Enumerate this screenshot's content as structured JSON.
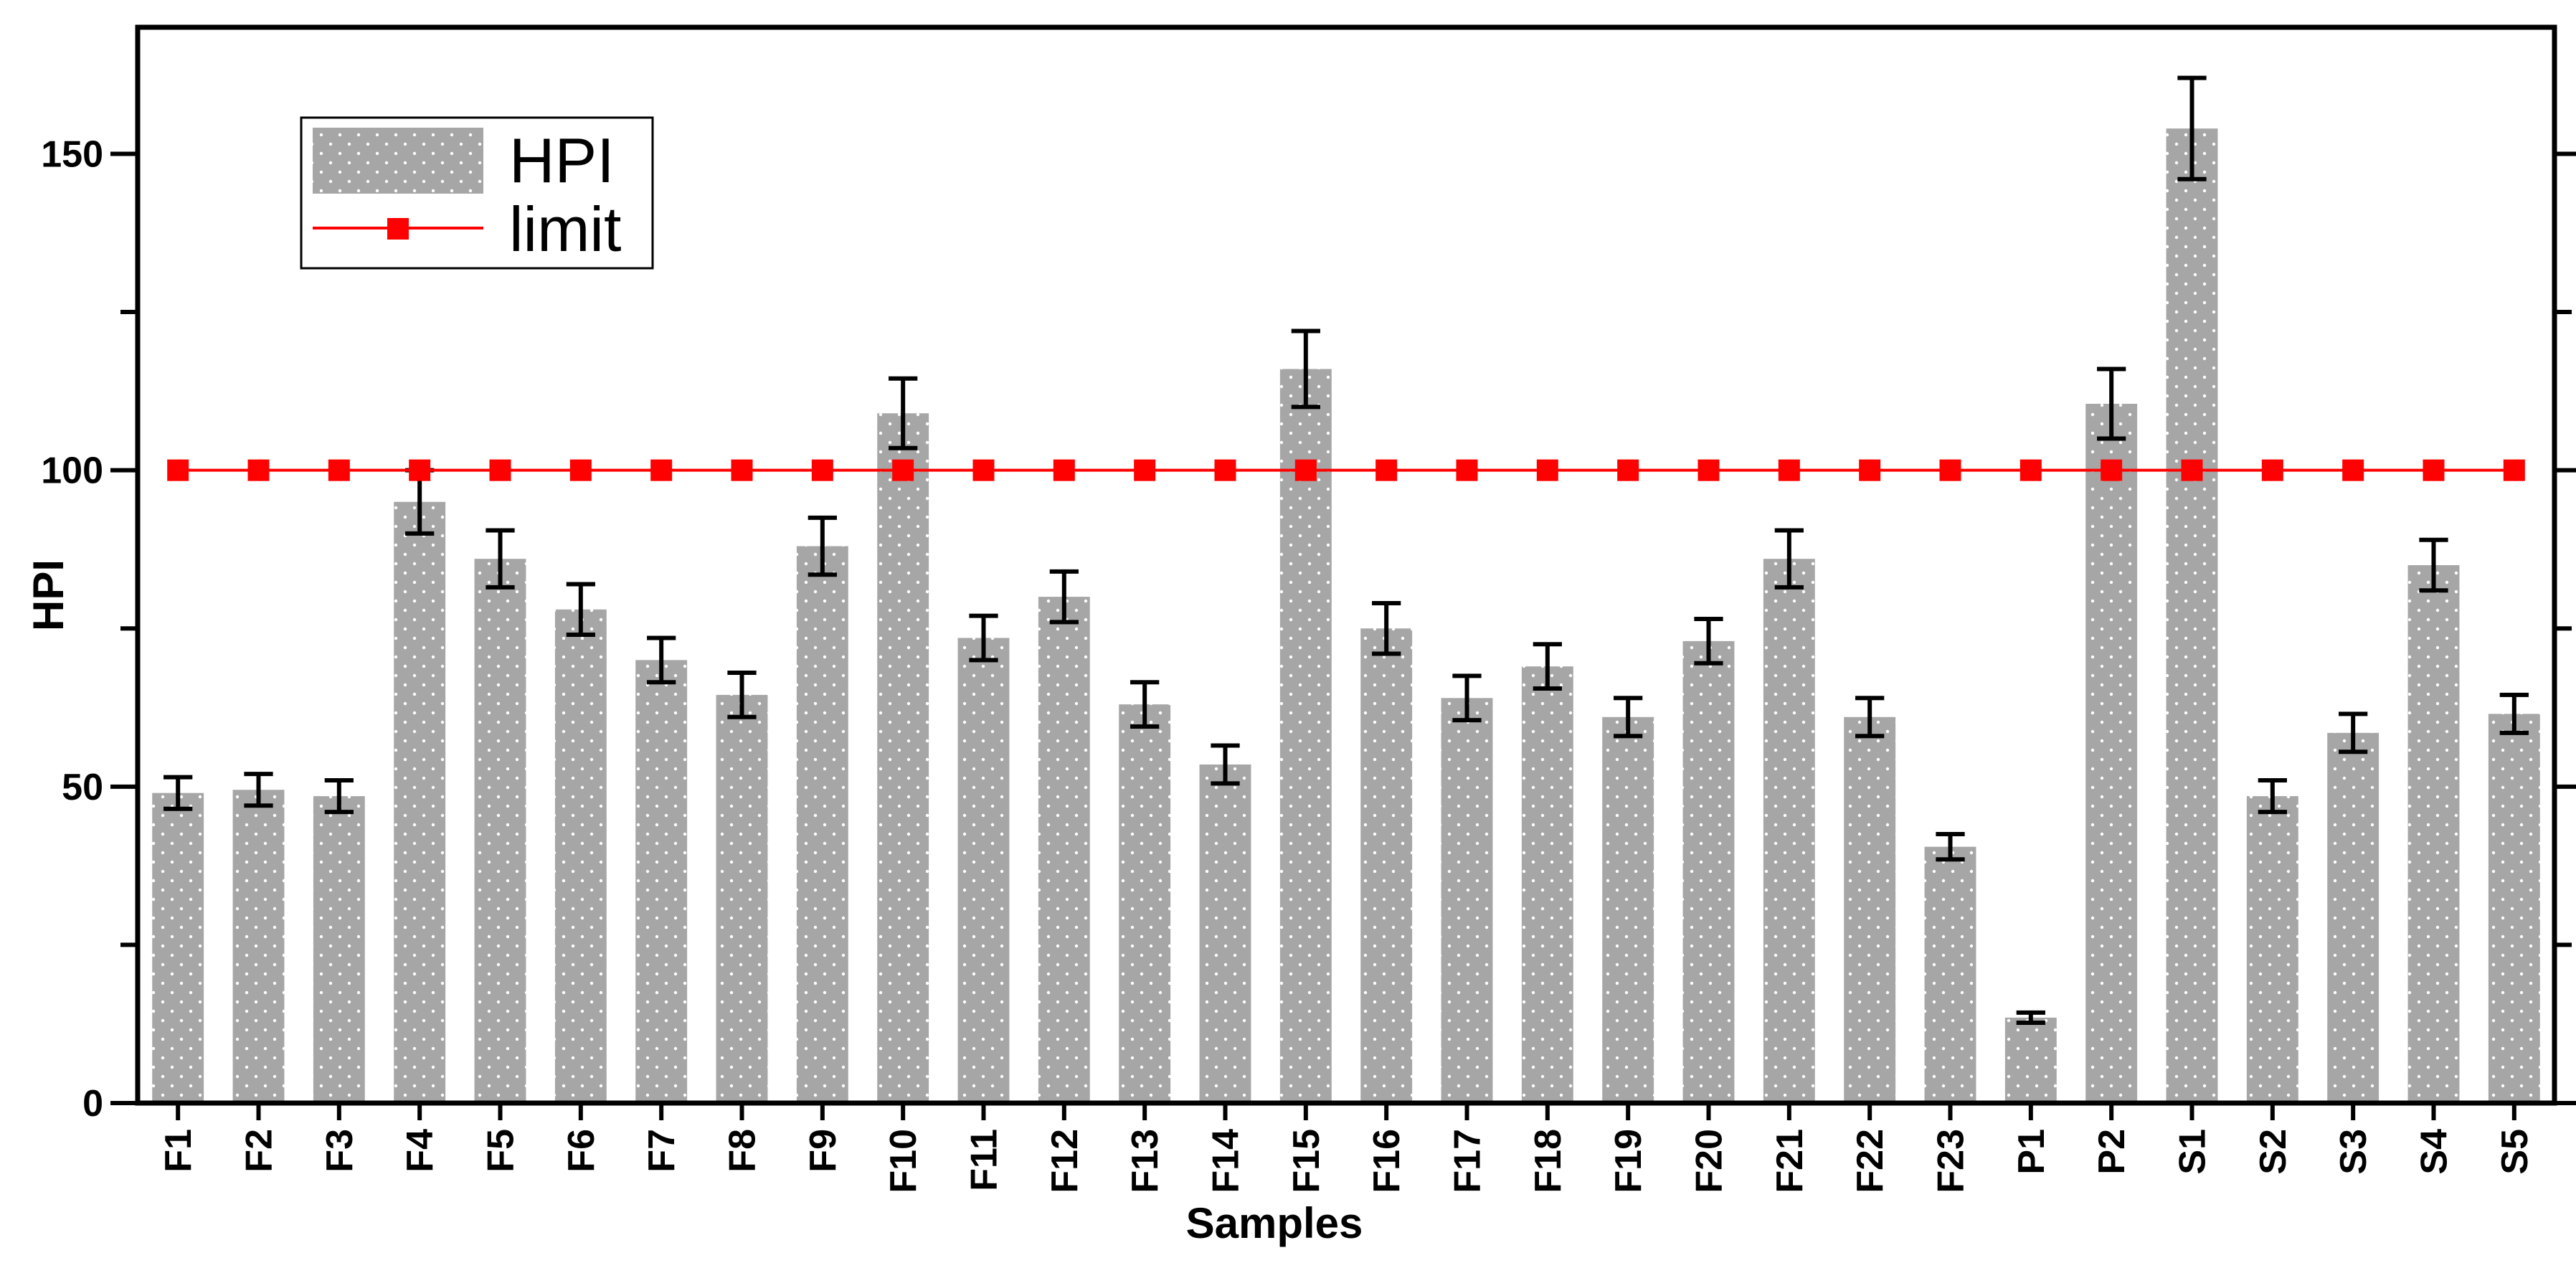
{
  "chart_data": {
    "type": "bar",
    "xlabel": "Samples",
    "ylabel": "HPI",
    "ylim": [
      0,
      170
    ],
    "yticks": [
      0,
      50,
      100,
      150
    ],
    "categories": [
      "F1",
      "F2",
      "F3",
      "F4",
      "F5",
      "F6",
      "F7",
      "F8",
      "F9",
      "F10",
      "F11",
      "F12",
      "F13",
      "F14",
      "F15",
      "F16",
      "F17",
      "F18",
      "F19",
      "F20",
      "F21",
      "F22",
      "F23",
      "P1",
      "P2",
      "S1",
      "S2",
      "S3",
      "S4",
      "S5"
    ],
    "series": [
      {
        "name": "HPI",
        "color": "#a6a6a6",
        "values": [
          49,
          49.5,
          48.5,
          95,
          86,
          78,
          70,
          64.5,
          88,
          109,
          73.5,
          80,
          63,
          53.5,
          116,
          75,
          64,
          69,
          61,
          73,
          86,
          61,
          40.5,
          13.5,
          110.5,
          154,
          48.5,
          58.5,
          85,
          61.5
        ],
        "errors": [
          2.5,
          2.5,
          2.5,
          5,
          4.5,
          4,
          3.5,
          3.5,
          4.5,
          5.5,
          3.5,
          4,
          3.5,
          3,
          6,
          4,
          3.5,
          3.5,
          3,
          3.5,
          4.5,
          3,
          2,
          0.8,
          5.5,
          8,
          2.5,
          3,
          4,
          3
        ]
      },
      {
        "name": "limit",
        "type": "line",
        "color": "#ff0000",
        "values": [
          100,
          100,
          100,
          100,
          100,
          100,
          100,
          100,
          100,
          100,
          100,
          100,
          100,
          100,
          100,
          100,
          100,
          100,
          100,
          100,
          100,
          100,
          100,
          100,
          100,
          100,
          100,
          100,
          100,
          100
        ]
      }
    ],
    "legend_position": "top-left",
    "grid": false
  }
}
